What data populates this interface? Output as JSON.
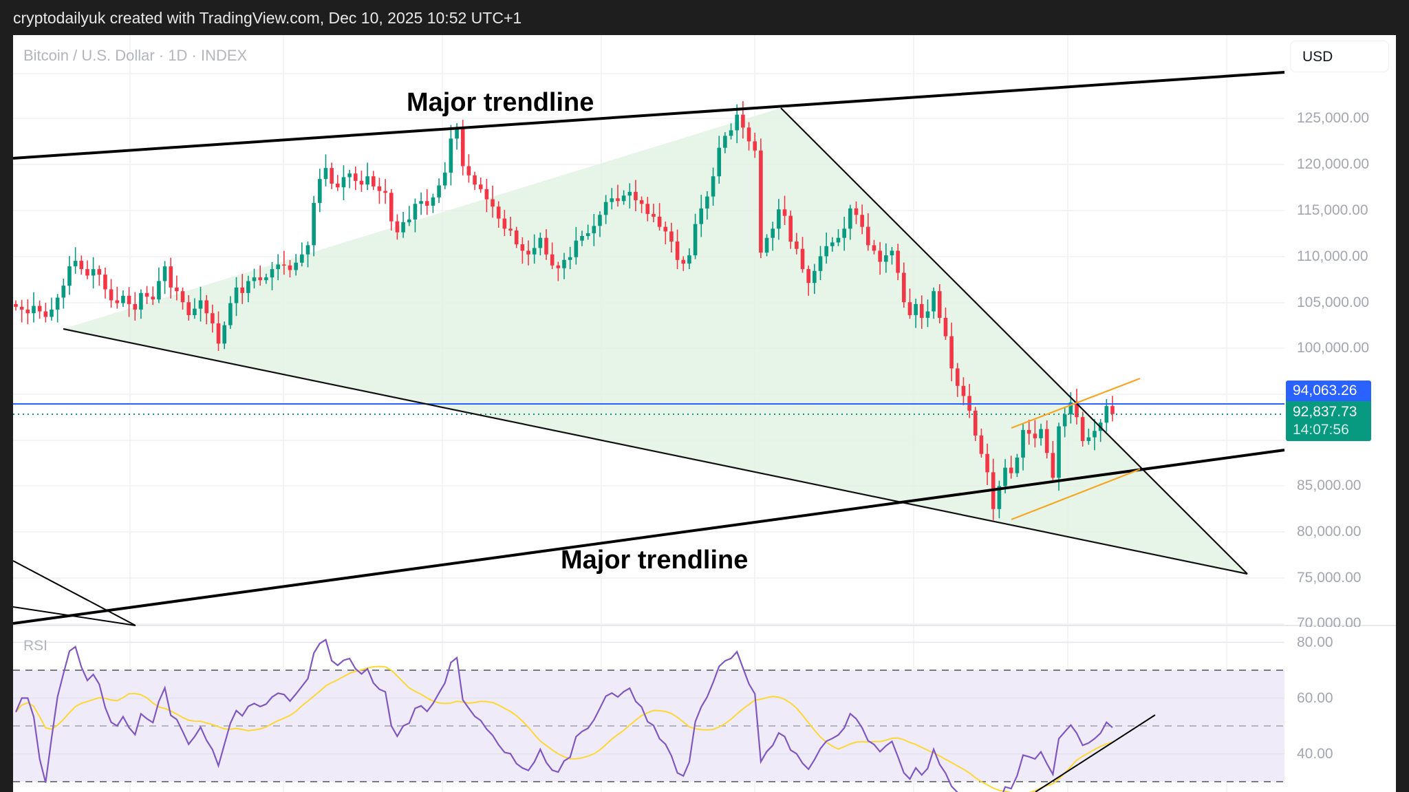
{
  "header": {
    "attribution": "cryptodailyuk created with TradingView.com, Dec 10, 2025 10:52 UTC+1"
  },
  "chart": {
    "symbol_title": "Bitcoin / U.S. Dollar · 1D · INDEX",
    "currency_button": "USD",
    "price_axis_labels": [
      "125,000.00",
      "120,000.00",
      "115,000.00",
      "110,000.00",
      "105,000.00",
      "100,000.00",
      "85,000.00",
      "80,000.00",
      "75,000.00",
      "70,000.00"
    ],
    "price_tags": {
      "high_line_price": "94,063.26",
      "last_price": "92,837.73",
      "countdown": "14:07:56"
    },
    "annotations": [
      {
        "text": "Major trendline",
        "position": "upper"
      },
      {
        "text": "Major trendline",
        "position": "lower"
      }
    ],
    "colors": {
      "up": "#089981",
      "down": "#f23645",
      "fill_triangle": "#e3f2e4",
      "hline_blue": "#2962ff",
      "channel_orange": "#f5a623",
      "rsi_line": "#7e57c2",
      "rsi_ma": "#fdd835",
      "rsi_band": "#efebf8"
    }
  },
  "rsi": {
    "label": "RSI",
    "axis_labels": [
      "80.00",
      "60.00",
      "40.00"
    ],
    "levels": {
      "upper": 70,
      "middle": 50,
      "lower": 30
    }
  },
  "chart_data": {
    "type": "candlestick",
    "title": "Bitcoin / U.S. Dollar · 1D · INDEX",
    "ylabel": "USD",
    "ylim": [
      70000,
      128000
    ],
    "y_ticks": [
      70000,
      75000,
      80000,
      85000,
      100000,
      105000,
      110000,
      115000,
      120000,
      125000
    ],
    "close_series_approx": [
      104500,
      104200,
      103800,
      104600,
      104000,
      103400,
      104200,
      105500,
      106800,
      108900,
      109500,
      108600,
      107900,
      108600,
      108000,
      106400,
      105200,
      104900,
      105700,
      104800,
      104200,
      106000,
      105600,
      105300,
      107300,
      108900,
      106600,
      106200,
      105000,
      103600,
      104300,
      105200,
      103800,
      102700,
      100500,
      102500,
      104900,
      106600,
      106000,
      107300,
      107700,
      107400,
      107700,
      108600,
      109100,
      109000,
      108500,
      109300,
      110200,
      111200,
      115800,
      118400,
      119600,
      117900,
      117500,
      118600,
      119000,
      118200,
      117800,
      118700,
      117600,
      117100,
      116900,
      113800,
      112600,
      113700,
      114000,
      115700,
      116000,
      115500,
      116400,
      117700,
      119100,
      122800,
      123900,
      119800,
      118800,
      117800,
      117300,
      116200,
      115400,
      114100,
      113000,
      112800,
      111300,
      110600,
      110200,
      110900,
      112000,
      110200,
      109000,
      108700,
      109600,
      109900,
      111700,
      112200,
      112500,
      113300,
      114500,
      115900,
      116300,
      116000,
      116600,
      117000,
      116100,
      115700,
      114600,
      114300,
      113200,
      112700,
      111600,
      109600,
      109200,
      110100,
      113500,
      115200,
      116500,
      118700,
      121800,
      123100,
      123700,
      125400,
      124000,
      122500,
      121500,
      110400,
      112000,
      113000,
      115100,
      114400,
      111600,
      110800,
      108600,
      107100,
      108400,
      110000,
      111100,
      111500,
      112000,
      113000,
      115200,
      114500,
      113200,
      111200,
      110600,
      109400,
      110100,
      110600,
      108200,
      105000,
      103600,
      104800,
      103300,
      104000,
      106200,
      103300,
      101300,
      97800,
      95900,
      94800,
      93200,
      90500,
      88500,
      86500,
      82500,
      85000,
      87000,
      86400,
      88100,
      91100,
      90700,
      90200,
      91200,
      88600,
      85900,
      91500,
      92800,
      94100,
      92500,
      89900,
      90300,
      91000,
      91900,
      93700,
      92837
    ]
  }
}
